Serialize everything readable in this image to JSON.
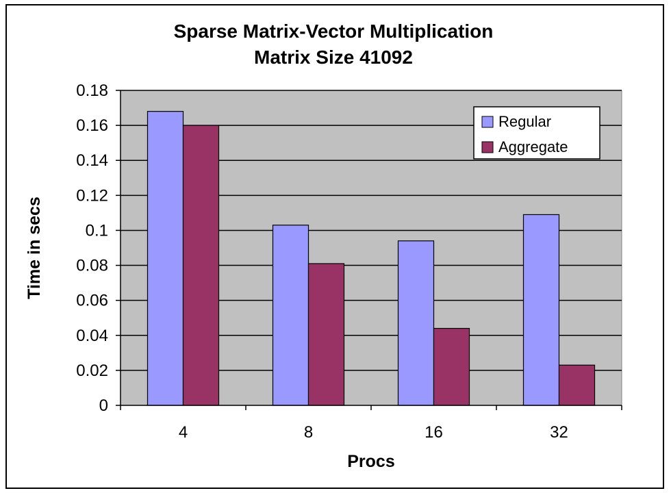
{
  "chart_data": {
    "type": "bar",
    "title": "Sparse Matrix-Vector Multiplication",
    "subtitle": "Matrix Size 41092",
    "xlabel": "Procs",
    "ylabel": "Time in secs",
    "categories": [
      "4",
      "8",
      "16",
      "32"
    ],
    "series": [
      {
        "name": "Regular",
        "color": "#9999ff",
        "values": [
          0.168,
          0.103,
          0.094,
          0.109
        ]
      },
      {
        "name": "Aggregate",
        "color": "#993366",
        "values": [
          0.16,
          0.081,
          0.044,
          0.023
        ]
      }
    ],
    "ylim": [
      0,
      0.18
    ],
    "yticks": [
      "0",
      "0.02",
      "0.04",
      "0.06",
      "0.08",
      "0.1",
      "0.12",
      "0.14",
      "0.16",
      "0.18"
    ],
    "grid": true,
    "plot_background": "#c0c0c0",
    "legend_position": "top-right"
  }
}
